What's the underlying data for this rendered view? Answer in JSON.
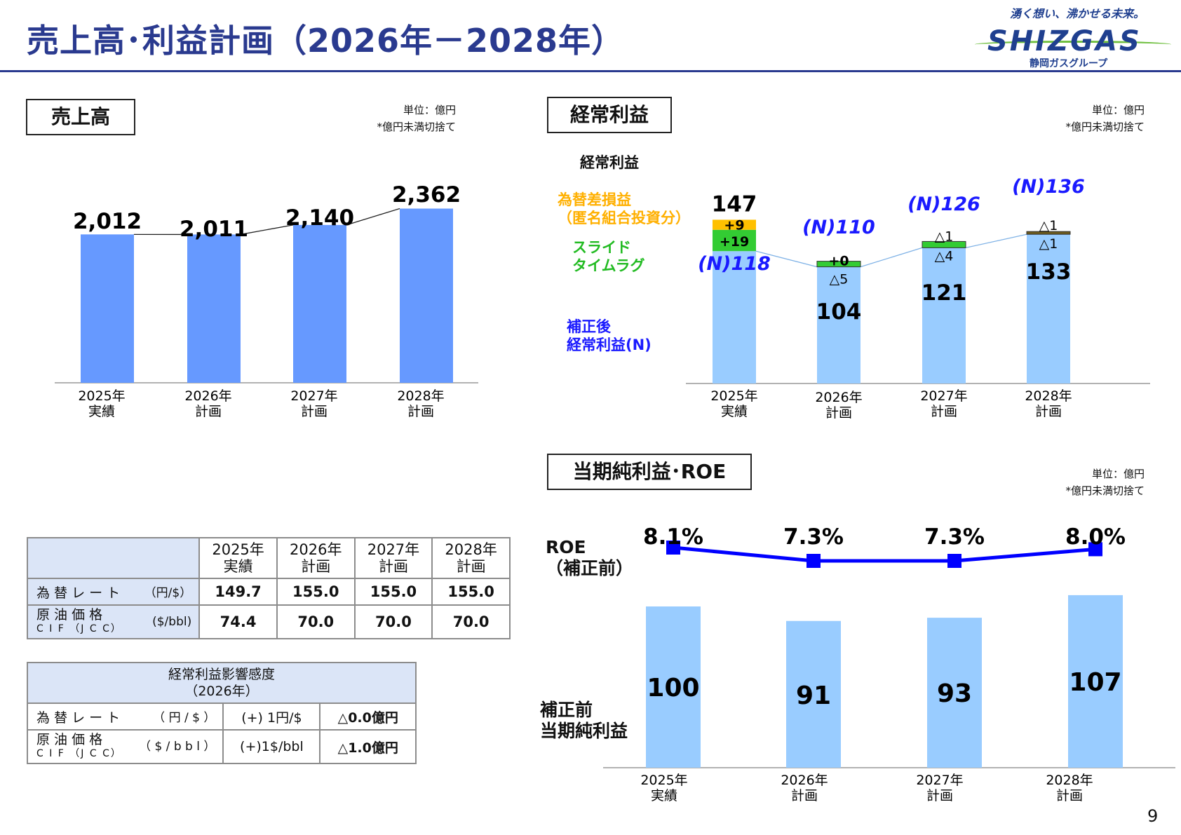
{
  "page": {
    "title": "売上高･利益計画（2026年－2028年）",
    "page_number": "9"
  },
  "logo": {
    "tagline": "湧く想い、沸かせる未来。",
    "name": "SHIZGAS",
    "group": "静岡ガスグループ",
    "colors": {
      "main": "#1f3f8f",
      "accent": "#6fbf3f"
    }
  },
  "colors": {
    "title": "#2a3a8f",
    "bar_sales": "#6699ff",
    "bar_profit": "#99ccff",
    "fx": "#ffc000",
    "slide": "#33cc33",
    "roe_line": "#0000ff",
    "n_label": "#1a1aff",
    "table_header": "#dbe5f7"
  },
  "sales": {
    "label": "売上高",
    "unit": "単位：億円",
    "note": "*億円未満切捨て"
  },
  "ordinary": {
    "label": "経常利益",
    "unit": "単位：億円",
    "note": "*億円未満切捨て",
    "legend_title": "経常利益",
    "legend_fx": [
      "為替差損益",
      "（匿名組合投資分）"
    ],
    "legend_slide": [
      "スライド",
      "タイムラグ"
    ],
    "legend_n": [
      "補正後",
      "経常利益(N)"
    ]
  },
  "net": {
    "label": "当期純利益･ROE",
    "unit": "単位：億円",
    "note": "*億円未満切捨て",
    "roe_label": [
      "ROE",
      "（補正前）"
    ],
    "net_label": [
      "補正前",
      "当期純利益"
    ]
  },
  "chart_data": [
    {
      "type": "bar",
      "title": "売上高",
      "categories": [
        [
          "2025年",
          "実績"
        ],
        [
          "2026年",
          "計画"
        ],
        [
          "2027年",
          "計画"
        ],
        [
          "2028年",
          "計画"
        ]
      ],
      "values": [
        2012,
        2011,
        2140,
        2362
      ],
      "labels": [
        "2,012",
        "2,011",
        "2,140",
        "2,362"
      ],
      "ylim": [
        0,
        2500
      ]
    },
    {
      "type": "bar",
      "title": "経常利益",
      "stacked": true,
      "categories": [
        [
          "2025年",
          "実績"
        ],
        [
          "2026年",
          "計画"
        ],
        [
          "2027年",
          "計画"
        ],
        [
          "2028年",
          "計画"
        ]
      ],
      "series": [
        {
          "name": "補正後経常利益(N)",
          "values": [
            118,
            104,
            121,
            133
          ],
          "labels": [
            "",
            "104",
            "121",
            "133"
          ]
        },
        {
          "name": "スライドタイムラグ",
          "values": [
            19,
            0,
            4,
            1
          ],
          "labels": [
            "+19",
            "+0",
            "△4",
            "△1"
          ]
        },
        {
          "name": "為替差損益（匿名組合投資分）",
          "values": [
            9,
            5,
            1,
            1
          ],
          "labels": [
            "+9",
            "△5",
            "△1",
            "△1"
          ]
        }
      ],
      "totals": [
        "147",
        "",
        "",
        ""
      ],
      "n_values": [
        118,
        110,
        126,
        136
      ],
      "n_labels": [
        "(N)118",
        "(N)110",
        "(N)126",
        "(N)136"
      ],
      "ylim": [
        0,
        150
      ]
    },
    {
      "type": "bar",
      "title": "当期純利益･ROE",
      "categories": [
        [
          "2025年",
          "実績"
        ],
        [
          "2026年",
          "計画"
        ],
        [
          "2027年",
          "計画"
        ],
        [
          "2028年",
          "計画"
        ]
      ],
      "series": [
        {
          "name": "補正前当期純利益",
          "values": [
            100,
            91,
            93,
            107
          ]
        },
        {
          "name": "ROE（補正前）",
          "type": "line",
          "values": [
            8.1,
            7.3,
            7.3,
            8.0
          ],
          "labels": [
            "8.1%",
            "7.3%",
            "7.3%",
            "8.0%"
          ]
        }
      ],
      "ylim": [
        0,
        110
      ]
    }
  ],
  "rate_table": {
    "headers": [
      [
        "2025年",
        "実績"
      ],
      [
        "2026年",
        "計画"
      ],
      [
        "2027年",
        "計画"
      ],
      [
        "2028年",
        "計画"
      ]
    ],
    "rows": [
      {
        "name": "為 替 レ ー ト",
        "name2": "",
        "unit": "（円/$）",
        "values": [
          "149.7",
          "155.0",
          "155.0",
          "155.0"
        ]
      },
      {
        "name": "原 油 価 格",
        "name2": "C I F （J C C）",
        "unit": "($/bbl)",
        "values": [
          "74.4",
          "70.0",
          "70.0",
          "70.0"
        ]
      }
    ]
  },
  "sensitivity_table": {
    "title": [
      "経常利益影響感度",
      "（2026年）"
    ],
    "rows": [
      {
        "name": "為 替 レ ー ト",
        "name2": "",
        "unit": "（ 円 / $ ）",
        "change": "(+) 1円/$",
        "impact": "△0.0億円"
      },
      {
        "name": "原 油 価 格",
        "name2": "C I F （J C C）",
        "unit": "（ $ / b b l ）",
        "change": "(+)1$/bbl",
        "impact": "△1.0億円"
      }
    ]
  }
}
